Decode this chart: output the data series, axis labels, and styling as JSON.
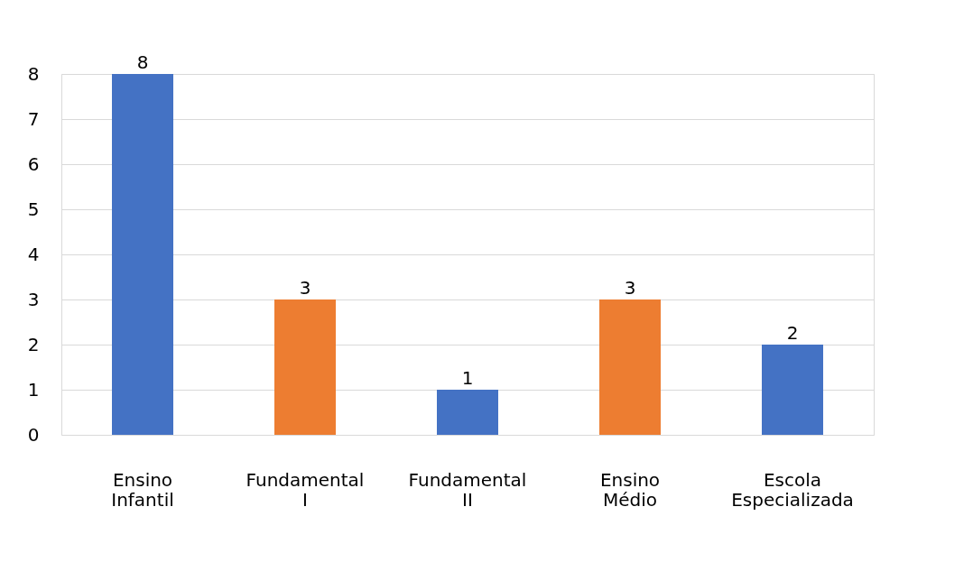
{
  "chart_data": {
    "type": "bar",
    "categories": [
      "Ensino Infantil",
      "Fundamental I",
      "Fundamental II",
      "Ensino Médio",
      "Escola Especializada"
    ],
    "values": [
      8,
      3,
      1,
      3,
      2
    ],
    "colors": [
      "#4472c4",
      "#ed7d31",
      "#4472c4",
      "#ed7d31",
      "#4472c4"
    ],
    "ylim": [
      0,
      8
    ],
    "yticks": [
      0,
      1,
      2,
      3,
      4,
      5,
      6,
      7,
      8
    ],
    "grid": "y",
    "data_labels": true
  }
}
